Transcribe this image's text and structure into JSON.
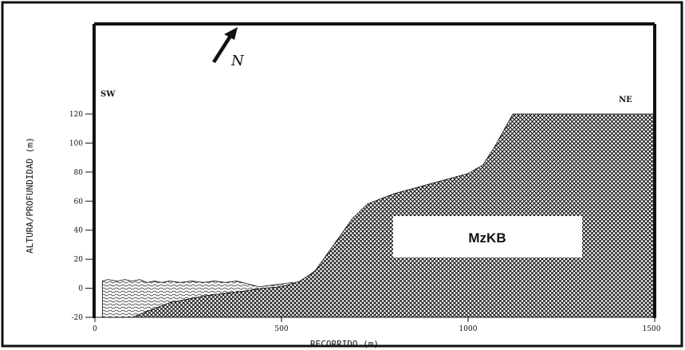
{
  "chart_data": {
    "type": "area",
    "xlabel": "RECORRIDO (m)",
    "ylabel": "ALTURA/PROFUNDIDAD (m)",
    "xlim": [
      0,
      1500
    ],
    "ylim": [
      -20,
      120
    ],
    "x_ticks": [
      0,
      500,
      1000,
      1500
    ],
    "y_ticks": [
      -20,
      0,
      20,
      40,
      60,
      80,
      100,
      120
    ],
    "grid": false,
    "end_labels": {
      "left": "SW",
      "right": "NE"
    },
    "north_arrow": {
      "letter": "N"
    },
    "series": [
      {
        "name": "MzKB",
        "fill": "crosshatch",
        "x": [
          0,
          100,
          200,
          300,
          400,
          450,
          500,
          550,
          590,
          640,
          690,
          730,
          800,
          900,
          1000,
          1040,
          1070,
          1120,
          1500
        ],
        "y": [
          -20,
          -20,
          -10,
          -5,
          -2,
          0,
          1,
          5,
          12,
          30,
          48,
          58,
          65,
          72,
          79,
          85,
          97,
          120,
          120
        ]
      },
      {
        "fill": "wavy",
        "x": [
          20,
          35,
          60,
          80,
          100,
          120,
          140,
          160,
          180,
          200,
          230,
          260,
          290,
          320,
          350,
          380,
          410,
          440,
          470,
          500,
          530
        ],
        "y": [
          5,
          6,
          5,
          6,
          5,
          6,
          4,
          5,
          4,
          5,
          4,
          5,
          4,
          5,
          4,
          5,
          3,
          1,
          2,
          3,
          4
        ]
      }
    ]
  },
  "figure": {
    "colors": {
      "ink": "#111111",
      "hatch": "#2b2b2b",
      "background": "#ffffff"
    }
  }
}
